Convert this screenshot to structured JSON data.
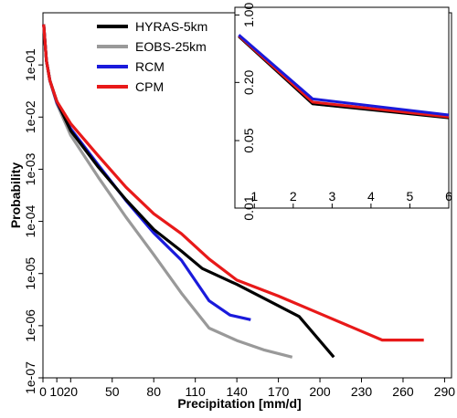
{
  "chart_data": [
    {
      "type": "line",
      "xlabel": "Precipitation [mm/d]",
      "ylabel": "Probability",
      "xscale": "linear",
      "yscale": "log",
      "xlim": [
        0,
        295
      ],
      "ylim": [
        1e-07,
        1
      ],
      "xticks": [
        0,
        10,
        20,
        50,
        80,
        110,
        140,
        170,
        200,
        230,
        260,
        290
      ],
      "xtick_labels": [
        "0",
        "10",
        "20",
        "50",
        "80",
        "110",
        "140",
        "170",
        "200",
        "230",
        "260",
        "290"
      ],
      "yticks": [
        1e-07,
        1e-06,
        1e-05,
        0.0001,
        0.001,
        0.01,
        0.1
      ],
      "ytick_labels": [
        "1e-07",
        "1e-06",
        "1e-05",
        "1e-04",
        "1e-03",
        "1e-02",
        "1e-01"
      ],
      "legend_position": "top-left",
      "series": [
        {
          "name": "HYRAS-5km",
          "color": "#000000",
          "points": [
            [
              0.5,
              0.6
            ],
            [
              2.5,
              0.12
            ],
            [
              5,
              0.05
            ],
            [
              10,
              0.02
            ],
            [
              20,
              0.0055
            ],
            [
              40,
              0.0011
            ],
            [
              60,
              0.00026
            ],
            [
              80,
              7e-05
            ],
            [
              100,
              2.7e-05
            ],
            [
              115,
              1.25e-05
            ],
            [
              140,
              6.2e-06
            ],
            [
              160,
              3.3e-06
            ],
            [
              185,
              1.5e-06
            ],
            [
              210,
              2.5e-07
            ]
          ]
        },
        {
          "name": "EOBS-25km",
          "color": "#999999",
          "points": [
            [
              0.5,
              0.6
            ],
            [
              2.5,
              0.12
            ],
            [
              5,
              0.05
            ],
            [
              10,
              0.018
            ],
            [
              20,
              0.0045
            ],
            [
              40,
              0.0007
            ],
            [
              60,
              0.00012
            ],
            [
              80,
              2.3e-05
            ],
            [
              100,
              4.2e-06
            ],
            [
              120,
              9e-07
            ],
            [
              140,
              5.2e-07
            ],
            [
              160,
              3.4e-07
            ],
            [
              180,
              2.5e-07
            ]
          ]
        },
        {
          "name": "RCM",
          "color": "#1a1adb",
          "points": [
            [
              0.5,
              0.6
            ],
            [
              2.5,
              0.12
            ],
            [
              5,
              0.05
            ],
            [
              10,
              0.019
            ],
            [
              20,
              0.006
            ],
            [
              40,
              0.0012
            ],
            [
              60,
              0.00025
            ],
            [
              80,
              6e-05
            ],
            [
              100,
              1.8e-05
            ],
            [
              120,
              3e-06
            ],
            [
              135,
              1.6e-06
            ],
            [
              150,
              1.3e-06
            ]
          ]
        },
        {
          "name": "CPM",
          "color": "#e81919",
          "points": [
            [
              0.5,
              0.6
            ],
            [
              2.5,
              0.12
            ],
            [
              5,
              0.05
            ],
            [
              10,
              0.02
            ],
            [
              20,
              0.0075
            ],
            [
              40,
              0.0018
            ],
            [
              60,
              0.00045
            ],
            [
              80,
              0.00014
            ],
            [
              100,
              5.8e-05
            ],
            [
              120,
              1.9e-05
            ],
            [
              140,
              7.5e-06
            ],
            [
              170,
              3.7e-06
            ],
            [
              200,
              1.7e-06
            ],
            [
              245,
              5.3e-07
            ],
            [
              275,
              5.3e-07
            ]
          ]
        }
      ]
    },
    {
      "type": "line",
      "title": "",
      "xscale": "linear",
      "yscale": "log",
      "xlim": [
        0.5,
        6
      ],
      "ylim": [
        0.01,
        1.2
      ],
      "xticks": [
        1,
        2,
        3,
        4,
        5,
        6
      ],
      "xtick_labels": [
        "1",
        "2",
        "3",
        "4",
        "5",
        "6"
      ],
      "yticks": [
        0.01,
        0.05,
        0.2,
        1.0
      ],
      "ytick_labels": [
        "0.01",
        "0.05",
        "0.20",
        "1.00"
      ],
      "series": [
        {
          "name": "HYRAS-5km",
          "color": "#000000",
          "points": [
            [
              0.6,
              0.6
            ],
            [
              2.5,
              0.12
            ],
            [
              6,
              0.086
            ]
          ]
        },
        {
          "name": "EOBS-25km",
          "color": "#999999",
          "points": [
            [
              0.6,
              0.6
            ],
            [
              2.5,
              0.12
            ],
            [
              6,
              0.088
            ]
          ]
        },
        {
          "name": "RCM",
          "color": "#1a1adb",
          "points": [
            [
              0.6,
              0.62
            ],
            [
              2.5,
              0.135
            ],
            [
              6,
              0.092
            ]
          ]
        },
        {
          "name": "CPM",
          "color": "#e81919",
          "points": [
            [
              0.6,
              0.61
            ],
            [
              2.5,
              0.125
            ],
            [
              6,
              0.088
            ]
          ]
        }
      ]
    }
  ]
}
